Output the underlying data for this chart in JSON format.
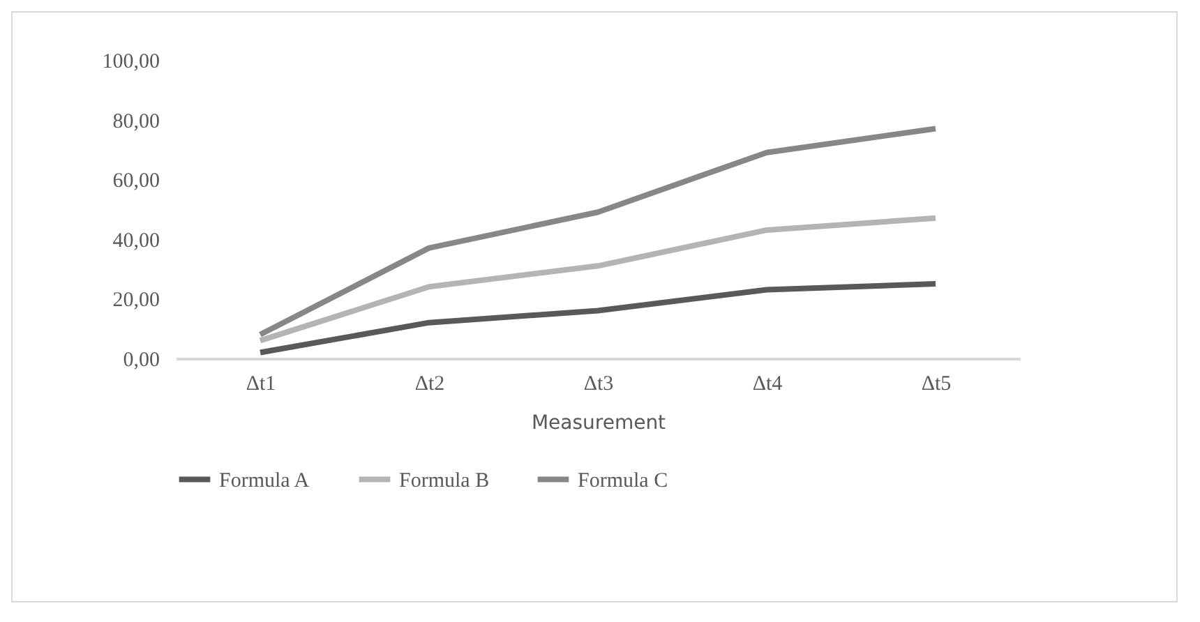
{
  "chart_data": {
    "type": "line",
    "xlabel": "Measurement",
    "categories": [
      "Δt1",
      "Δt2",
      "Δt3",
      "Δt4",
      "Δt5"
    ],
    "series": [
      {
        "name": "Formula A",
        "color": "#595959",
        "values": [
          2,
          12,
          16,
          23,
          25
        ]
      },
      {
        "name": "Formula B",
        "color": "#b4b4b4",
        "values": [
          6,
          24,
          31,
          43,
          47
        ]
      },
      {
        "name": "Formula C",
        "color": "#878787",
        "values": [
          8,
          37,
          49,
          69,
          77
        ]
      }
    ],
    "ylim": [
      0,
      100
    ],
    "yticks": [
      {
        "value": 0,
        "label": "0,00"
      },
      {
        "value": 20,
        "label": "20,00"
      },
      {
        "value": 40,
        "label": "40,00"
      },
      {
        "value": 60,
        "label": "60,00"
      },
      {
        "value": 80,
        "label": "80,00"
      },
      {
        "value": 100,
        "label": "100,00"
      }
    ],
    "grid": false,
    "legend": "bottom",
    "marker": "none",
    "line_style": "solid"
  }
}
